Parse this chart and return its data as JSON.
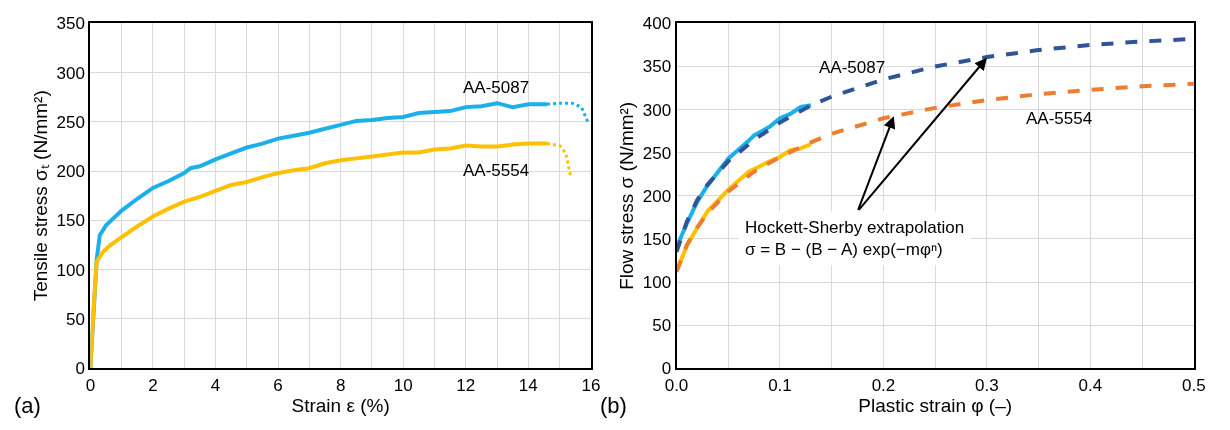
{
  "chart_data": [
    {
      "type": "line",
      "xlabel": "Strain ε (%)",
      "ylabel": "Tensile stress σₜ (N/mm²)",
      "xlim": [
        0,
        16
      ],
      "ylim": [
        0,
        350
      ],
      "xticks": [
        0,
        {
          "value": 1,
          "label": null
        },
        2,
        {
          "value": 3,
          "label": null
        },
        4,
        {
          "value": 5,
          "label": null
        },
        6,
        {
          "value": 7,
          "label": null
        },
        8,
        {
          "value": 9,
          "label": null
        },
        10,
        {
          "value": 11,
          "label": null
        },
        12,
        {
          "value": 13,
          "label": null
        },
        14,
        {
          "value": 15,
          "label": null
        },
        16
      ],
      "yticks": [
        0,
        50,
        100,
        150,
        200,
        250,
        300,
        350
      ],
      "grid": true,
      "legend": false,
      "series": [
        {
          "name": "AA-5087",
          "color": "#1cb0ea",
          "line_style": "solid",
          "x": [
            0,
            0.2,
            0.3,
            0.5,
            1,
            1.5,
            2,
            2.5,
            3,
            3.2,
            3.5,
            4,
            4.5,
            5,
            5.5,
            6,
            6.5,
            7,
            7.5,
            8,
            8.5,
            9,
            9.5,
            10,
            10.5,
            11,
            11.5,
            12,
            12.5,
            13,
            13.5,
            14,
            14.6
          ],
          "values": [
            0,
            110,
            135,
            145,
            160,
            172,
            183,
            190,
            198,
            203,
            205,
            212,
            218,
            224,
            228,
            233,
            236,
            239,
            243,
            247,
            251,
            252,
            254,
            255,
            259,
            260,
            261,
            265,
            266,
            269,
            265,
            268,
            268
          ]
        },
        {
          "color": "#1cb0ea",
          "line_style": "dotted",
          "x": [
            14.6,
            15,
            15.4,
            15.7,
            15.9
          ],
          "values": [
            268,
            269,
            269,
            265,
            250
          ]
        },
        {
          "name": "AA-5554",
          "color": "#ffc000",
          "line_style": "solid",
          "x": [
            0,
            0.1,
            0.2,
            0.4,
            0.6,
            1,
            1.5,
            2,
            2.5,
            3,
            3.5,
            4,
            4.5,
            5,
            5.5,
            6,
            6.5,
            7,
            7.5,
            8,
            8.5,
            9,
            9.5,
            10,
            10.5,
            11,
            11.5,
            12,
            12.5,
            13,
            13.5,
            14,
            14.6
          ],
          "values": [
            0,
            60,
            108,
            118,
            124,
            133,
            144,
            154,
            162,
            169,
            174,
            180,
            186,
            189,
            194,
            198,
            201,
            203,
            208,
            211,
            213,
            215,
            217,
            219,
            219,
            222,
            223,
            226,
            225,
            225,
            227,
            228,
            228
          ]
        },
        {
          "color": "#ffc000",
          "line_style": "dotted",
          "x": [
            14.6,
            15,
            15.2,
            15.35
          ],
          "values": [
            228,
            226,
            218,
            195
          ]
        }
      ],
      "annotations": [
        "(a)"
      ]
    },
    {
      "type": "line",
      "xlabel": "Plastic strain φ (–)",
      "ylabel": "Flow stress σ (N/mm²)",
      "xlim": [
        0,
        0.5
      ],
      "ylim": [
        0,
        400
      ],
      "xticks": [
        {
          "value": 0,
          "label": "0.0"
        },
        {
          "value": 0.05,
          "label": null
        },
        0.1,
        {
          "value": 0.15,
          "label": null
        },
        0.2,
        {
          "value": 0.25,
          "label": null
        },
        0.3,
        {
          "value": 0.35,
          "label": null
        },
        0.4,
        {
          "value": 0.45,
          "label": null
        },
        0.5
      ],
      "yticks": [
        0,
        50,
        100,
        150,
        200,
        250,
        300,
        350,
        400
      ],
      "grid": true,
      "legend": false,
      "series": [
        {
          "color": "#1cb0ea",
          "line_style": "solid",
          "x": [
            0,
            0.01,
            0.02,
            0.03,
            0.05,
            0.07,
            0.075,
            0.09,
            0.1,
            0.11,
            0.12,
            0.13
          ],
          "values": [
            140,
            168,
            193,
            212,
            243,
            264,
            270,
            280,
            290,
            295,
            303,
            305
          ]
        },
        {
          "color": "#ffc000",
          "line_style": "solid",
          "x": [
            0,
            0.01,
            0.02,
            0.03,
            0.05,
            0.07,
            0.09,
            0.1,
            0.11,
            0.12,
            0.13
          ],
          "values": [
            112,
            142,
            163,
            182,
            207,
            228,
            240,
            245,
            253,
            255,
            260
          ]
        },
        {
          "name": "AA-5087",
          "color": "#2f5597",
          "line_style": "dashed",
          "x": [
            0,
            0.01,
            0.02,
            0.03,
            0.05,
            0.075,
            0.1,
            0.13,
            0.15,
            0.2,
            0.25,
            0.3,
            0.35,
            0.4,
            0.45,
            0.5
          ],
          "values": [
            135,
            170,
            195,
            213,
            240,
            265,
            285,
            305,
            315,
            335,
            350,
            361,
            369,
            375,
            379,
            382
          ]
        },
        {
          "name": "AA-5554",
          "color": "#ed7d31",
          "line_style": "dashed",
          "x": [
            0,
            0.01,
            0.02,
            0.03,
            0.05,
            0.075,
            0.1,
            0.13,
            0.15,
            0.2,
            0.25,
            0.3,
            0.35,
            0.4,
            0.45,
            0.5
          ],
          "values": [
            112,
            143,
            163,
            180,
            205,
            228,
            245,
            262,
            272,
            290,
            302,
            311,
            318,
            323,
            327,
            330
          ]
        }
      ],
      "annotations": [
        {
          "text": "Hockett-Sherby extrapolation\nσ = B − (B − A) exp(−mφⁿ)",
          "x": 0.3,
          "y": 360
        },
        "(b)"
      ]
    }
  ]
}
